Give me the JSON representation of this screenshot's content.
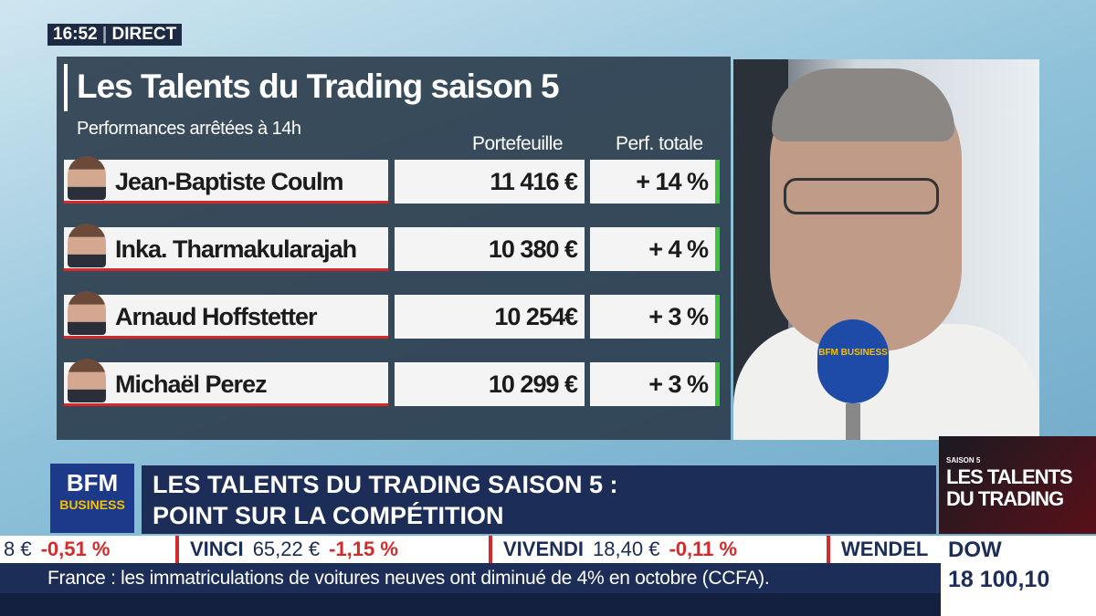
{
  "header": {
    "clock": "16:52",
    "live": "DIRECT"
  },
  "panel": {
    "title": "Les Talents du Trading saison 5",
    "subtitle": "Performances arrêtées à 14h",
    "columns": [
      "Portefeuille",
      "Perf. totale"
    ],
    "rows": [
      [
        "Jean-Baptiste Coulm",
        "11 416 €",
        "+ 14 %"
      ],
      [
        "Inka. Tharmakularajah",
        "10 380 €",
        "+ 4 %"
      ],
      [
        "Arnaud Hoffstetter",
        "10 254€",
        "+ 3 %"
      ],
      [
        "Michaël Perez",
        "10 299 €",
        "+ 3 %"
      ]
    ]
  },
  "microphone": "BFM BUSINESS",
  "lower_third": {
    "channel_logo": [
      "BFM",
      "BUSINESS"
    ],
    "headline": [
      "LES TALENTS DU TRADING SAISON 5 :",
      "POINT SUR LA COMPÉTITION"
    ],
    "show_logo": [
      "SAISON 5",
      "LES TALENTS",
      "DU TRADING"
    ]
  },
  "ticker": {
    "items": [
      [
        null,
        "8 €",
        "-0,51 %"
      ],
      [
        "VINCI",
        "65,22 €",
        "-1,15 %"
      ],
      [
        "VIVENDI",
        "18,40 €",
        "-0,11 %"
      ],
      [
        "WENDEL",
        null,
        null
      ]
    ],
    "index": {
      "name": "DOW",
      "value": "18 100,10"
    }
  },
  "crawl": "France : les immatriculations de voitures neuves ont diminué de 4% en octobre (CCFA)."
}
